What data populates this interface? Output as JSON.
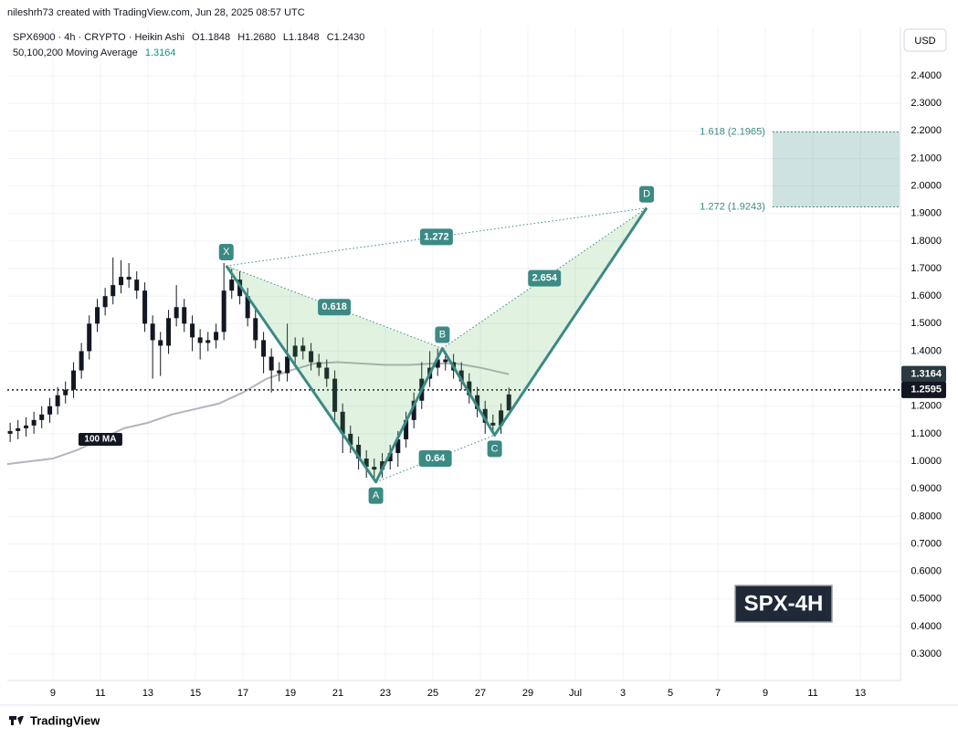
{
  "chart_data": {
    "type": "candlestick",
    "credit": "nileshrh73 created with TradingView.com, Jun 28, 2025 08:57 UTC",
    "symbol": "SPX6900 · 4h · CRYPTO · Heikin Ashi",
    "ohlc": [
      "O1.1848",
      "H1.2680",
      "L1.1848",
      "C1.2430"
    ],
    "currency": "USD",
    "watermark": "SPX-4H",
    "footer": "TradingView",
    "xlim": [
      7.08,
      44.65
    ],
    "ylim": [
      0.204,
      2.576
    ],
    "grid": true,
    "xticks": [
      9,
      11,
      13,
      15,
      17,
      19,
      21,
      23,
      25,
      27,
      29,
      {
        "value": 31,
        "label": "Jul"
      },
      {
        "value": 33,
        "label": "3"
      },
      {
        "value": 35,
        "label": "5"
      },
      {
        "value": 37,
        "label": "7"
      },
      {
        "value": 39,
        "label": "9"
      },
      {
        "value": 41,
        "label": "11"
      },
      {
        "value": 43,
        "label": "13"
      }
    ],
    "yticks": [
      {
        "value": 2.4,
        "label": "2.4000"
      },
      {
        "value": 2.3,
        "label": "2.3000"
      },
      {
        "value": 2.2,
        "label": "2.2000"
      },
      {
        "value": 2.1,
        "label": "2.1000"
      },
      {
        "value": 2.0,
        "label": "2.0000"
      },
      {
        "value": 1.9,
        "label": "1.9000"
      },
      {
        "value": 1.8,
        "label": "1.8000"
      },
      {
        "value": 1.7,
        "label": "1.7000"
      },
      {
        "value": 1.6,
        "label": "1.6000"
      },
      {
        "value": 1.5,
        "label": "1.5000"
      },
      {
        "value": 1.4,
        "label": "1.4000"
      },
      {
        "value": 1.2,
        "label": "1.2000"
      },
      {
        "value": 1.1,
        "label": "1.1000"
      },
      {
        "value": 1.0,
        "label": "1.0000"
      },
      {
        "value": 0.9,
        "label": "0.9000"
      },
      {
        "value": 0.8,
        "label": "0.8000"
      },
      {
        "value": 0.7,
        "label": "0.7000"
      },
      {
        "value": 0.6,
        "label": "0.6000"
      },
      {
        "value": 0.5,
        "label": "0.5000"
      },
      {
        "value": 0.4,
        "label": "0.4000"
      },
      {
        "value": 0.3,
        "label": "0.3000"
      }
    ],
    "candle_color": "#131722",
    "candles": {
      "x": [
        7.2,
        7.53,
        7.87,
        8.2,
        8.53,
        8.87,
        9.2,
        9.53,
        9.87,
        10.2,
        10.53,
        10.87,
        11.2,
        11.53,
        11.87,
        12.2,
        12.53,
        12.87,
        13.2,
        13.53,
        13.87,
        14.2,
        14.53,
        14.87,
        15.2,
        15.53,
        15.87,
        16.2,
        16.53,
        16.87,
        17.2,
        17.53,
        17.87,
        18.2,
        18.53,
        18.87,
        19.2,
        19.53,
        19.87,
        20.2,
        20.53,
        20.87,
        21.2,
        21.53,
        21.87,
        22.2,
        22.53,
        22.87,
        23.2,
        23.53,
        23.87,
        24.2,
        24.53,
        24.87,
        25.2,
        25.53,
        25.87,
        26.2,
        26.53,
        26.87,
        27.2,
        27.53,
        27.87,
        28.2
      ],
      "open": [
        1.1,
        1.11,
        1.12,
        1.13,
        1.15,
        1.17,
        1.2,
        1.24,
        1.26,
        1.33,
        1.4,
        1.5,
        1.56,
        1.6,
        1.64,
        1.67,
        1.66,
        1.62,
        1.5,
        1.44,
        1.42,
        1.52,
        1.56,
        1.5,
        1.45,
        1.43,
        1.44,
        1.47,
        1.62,
        1.66,
        1.6,
        1.52,
        1.44,
        1.38,
        1.33,
        1.32,
        1.38,
        1.42,
        1.4,
        1.36,
        1.34,
        1.3,
        1.18,
        1.1,
        1.06,
        1.01,
        0.98,
        0.97,
        1.0,
        1.03,
        1.08,
        1.15,
        1.22,
        1.3,
        1.34,
        1.37,
        1.36,
        1.33,
        1.29,
        1.24,
        1.19,
        1.14,
        1.13,
        1.1848
      ],
      "high": [
        1.14,
        1.15,
        1.16,
        1.18,
        1.2,
        1.23,
        1.27,
        1.29,
        1.36,
        1.43,
        1.53,
        1.59,
        1.63,
        1.74,
        1.73,
        1.72,
        1.69,
        1.65,
        1.53,
        1.47,
        1.55,
        1.64,
        1.59,
        1.53,
        1.48,
        1.47,
        1.5,
        1.72,
        1.7,
        1.69,
        1.63,
        1.55,
        1.47,
        1.41,
        1.36,
        1.5,
        1.45,
        1.45,
        1.43,
        1.39,
        1.37,
        1.33,
        1.21,
        1.13,
        1.09,
        1.04,
        1.01,
        1.03,
        1.06,
        1.11,
        1.18,
        1.25,
        1.36,
        1.4,
        1.41,
        1.4,
        1.39,
        1.36,
        1.32,
        1.27,
        1.22,
        1.17,
        1.21,
        1.268
      ],
      "low": [
        1.07,
        1.08,
        1.09,
        1.1,
        1.12,
        1.14,
        1.17,
        1.21,
        1.23,
        1.3,
        1.37,
        1.47,
        1.53,
        1.57,
        1.61,
        1.63,
        1.59,
        1.47,
        1.3,
        1.31,
        1.39,
        1.49,
        1.47,
        1.4,
        1.37,
        1.4,
        1.41,
        1.44,
        1.59,
        1.57,
        1.49,
        1.41,
        1.32,
        1.25,
        1.29,
        1.29,
        1.35,
        1.37,
        1.33,
        1.31,
        1.27,
        1.15,
        1.03,
        1.03,
        0.97,
        0.94,
        0.93,
        0.94,
        0.97,
        0.98,
        1.05,
        1.12,
        1.19,
        1.27,
        1.31,
        1.33,
        1.3,
        1.26,
        1.21,
        1.16,
        1.1,
        1.1,
        1.1,
        1.1848
      ],
      "close": [
        1.11,
        1.12,
        1.13,
        1.15,
        1.17,
        1.2,
        1.24,
        1.26,
        1.33,
        1.4,
        1.5,
        1.56,
        1.6,
        1.64,
        1.67,
        1.66,
        1.62,
        1.5,
        1.44,
        1.42,
        1.52,
        1.56,
        1.5,
        1.45,
        1.43,
        1.44,
        1.47,
        1.62,
        1.66,
        1.6,
        1.52,
        1.44,
        1.38,
        1.33,
        1.32,
        1.38,
        1.42,
        1.4,
        1.36,
        1.34,
        1.3,
        1.18,
        1.1,
        1.06,
        1.01,
        0.98,
        0.97,
        1.0,
        1.03,
        1.08,
        1.15,
        1.22,
        1.3,
        1.34,
        1.37,
        1.36,
        1.33,
        1.29,
        1.24,
        1.19,
        1.14,
        1.13,
        1.1848,
        1.243
      ]
    },
    "moving_average": {
      "name": "50,100,200 Moving Average",
      "value": {
        "value": 1.3164,
        "label": "1.3164"
      },
      "tag": "100 MA",
      "color": "#b2b5be",
      "x": [
        7.08,
        9,
        10,
        11,
        12,
        13,
        14,
        15,
        16,
        17,
        18,
        19,
        20,
        21,
        22,
        23,
        24,
        25,
        26,
        27,
        28.2
      ],
      "values": [
        0.99,
        1.01,
        1.04,
        1.08,
        1.12,
        1.14,
        1.17,
        1.19,
        1.21,
        1.25,
        1.3,
        1.33,
        1.355,
        1.36,
        1.355,
        1.35,
        1.35,
        1.355,
        1.355,
        1.34,
        1.3164
      ]
    },
    "last_price": {
      "value": 1.2595,
      "label": "1.2595"
    },
    "pattern": {
      "color": "#3b8a84",
      "points": [
        {
          "label": "X",
          "x": 16.3,
          "y": 1.71
        },
        {
          "label": "A",
          "x": 22.6,
          "y": 0.925
        },
        {
          "label": "B",
          "x": 25.4,
          "y": 1.41
        },
        {
          "label": "C",
          "x": 27.6,
          "y": 1.095
        },
        {
          "label": "D",
          "x": 34.0,
          "y": 1.92
        }
      ],
      "ratios": [
        {
          "value": 1.272,
          "between": [
            "X",
            "D"
          ]
        },
        {
          "value": 0.618,
          "between": [
            "X",
            "B"
          ]
        },
        {
          "value": 0.64,
          "between": [
            "A",
            "C"
          ]
        },
        {
          "value": 2.654,
          "between": [
            "B",
            "D"
          ]
        }
      ]
    },
    "fib_zone": {
      "x_start": 39.3,
      "upper": {
        "value": 2.1965,
        "label": "1.618 (2.1965)"
      },
      "lower": {
        "value": 1.9243,
        "label": "1.272 (1.9243)"
      }
    }
  }
}
